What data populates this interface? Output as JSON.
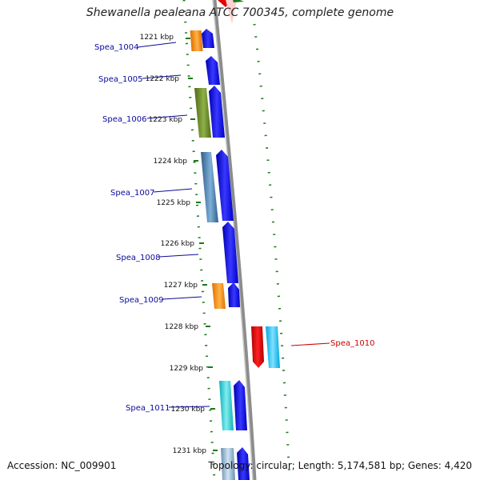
{
  "title": "Shewanella pealeana ATCC 700345, complete genome",
  "footer": {
    "accession": "Accession: NC_009901",
    "summary": "Topology: circular; Length: 5,174,581 bp; Genes: 4,420"
  },
  "colors": {
    "gene_label": "#0a0a9c",
    "highlight_label": "#cc0000",
    "backbone": "#8c8c8c",
    "grid_dots": "#1a7a1a",
    "forward_strand": "#0000ee"
  },
  "ticks": [
    "1221 kbp",
    "1222 kbp",
    "1223 kbp",
    "1224 kbp",
    "1225 kbp",
    "1226 kbp",
    "1227 kbp",
    "1228 kbp",
    "1229 kbp",
    "1230 kbp",
    "1231 kbp"
  ],
  "genes": [
    {
      "label": "Spea_1004",
      "color_name": "orange",
      "color": "#ff8c00"
    },
    {
      "label": "Spea_1005",
      "color_name": "none",
      "color": "#0000ee"
    },
    {
      "label": "Spea_1006",
      "color_name": "olive",
      "color": "#6b8e23"
    },
    {
      "label": "Spea_1007",
      "color_name": "steelblue",
      "color": "#4682b4"
    },
    {
      "label": "Spea_1008",
      "color_name": "none",
      "color": "#0000ee"
    },
    {
      "label": "Spea_1009",
      "color_name": "orange",
      "color": "#ff8c00"
    },
    {
      "label": "Spea_1010",
      "color_name": "red",
      "color": "#e00000"
    },
    {
      "label": "Spea_1011",
      "color_name": "cyan",
      "color": "#20c8d0"
    }
  ]
}
